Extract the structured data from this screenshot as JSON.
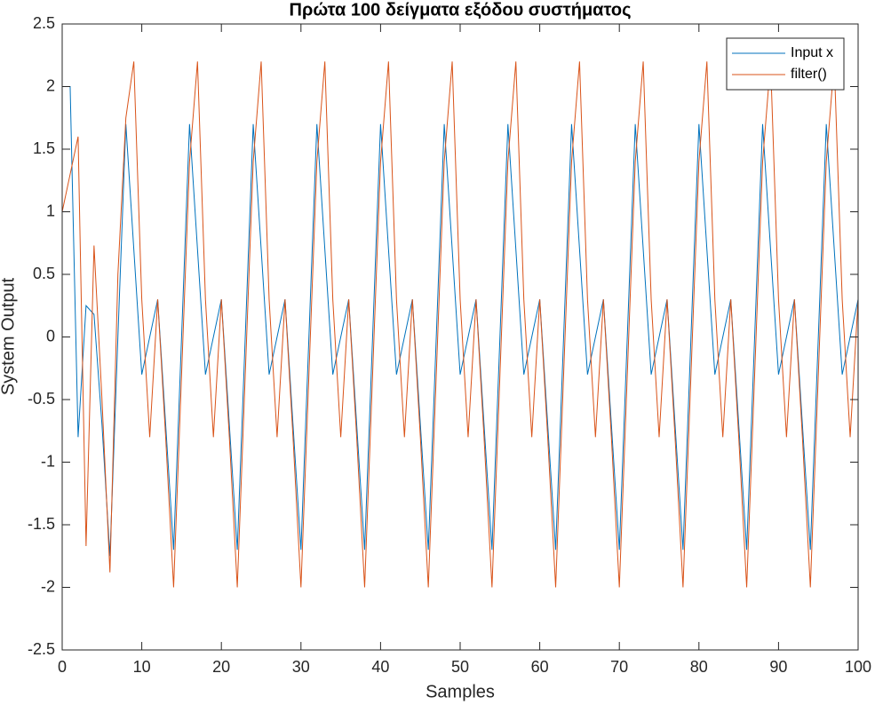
{
  "chart_data": {
    "type": "line",
    "title": "Πρώτα 100 δείγματα εξόδου συστήματος",
    "x_label": "Samples",
    "y_label": "System Output",
    "x": [
      0,
      1,
      2,
      3,
      4,
      5,
      6,
      7,
      8,
      9,
      10,
      11,
      12,
      13,
      14,
      15,
      16,
      17,
      18,
      19,
      20,
      21,
      22,
      23,
      24,
      25,
      26,
      27,
      28,
      29,
      30,
      31,
      32,
      33,
      34,
      35,
      36,
      37,
      38,
      39,
      40,
      41,
      42,
      43,
      44,
      45,
      46,
      47,
      48,
      49,
      50,
      51,
      52,
      53,
      54,
      55,
      56,
      57,
      58,
      59,
      60,
      61,
      62,
      63,
      64,
      65,
      66,
      67,
      68,
      69,
      70,
      71,
      72,
      73,
      74,
      75,
      76,
      77,
      78,
      79,
      80,
      81,
      82,
      83,
      84,
      85,
      86,
      87,
      88,
      89,
      90,
      91,
      92,
      93,
      94,
      95,
      96,
      97,
      98,
      99,
      100
    ],
    "series": [
      {
        "name": "Input x",
        "color": "#0072BD",
        "values": [
          2,
          2,
          -0.8,
          0.25,
          0.18,
          -0.7,
          -1.75,
          0,
          1.7,
          0.7,
          -0.3,
          0,
          0.3,
          -0.7,
          -1.7,
          0,
          1.7,
          0.7,
          -0.3,
          0,
          0.3,
          -0.7,
          -1.7,
          0,
          1.7,
          0.7,
          -0.3,
          0,
          0.3,
          -0.7,
          -1.7,
          0,
          1.7,
          0.7,
          -0.3,
          0,
          0.3,
          -0.7,
          -1.7,
          0,
          1.7,
          0.7,
          -0.3,
          0,
          0.3,
          -0.7,
          -1.7,
          0,
          1.7,
          0.7,
          -0.3,
          0,
          0.3,
          -0.7,
          -1.7,
          0,
          1.7,
          0.7,
          -0.3,
          0,
          0.3,
          -0.7,
          -1.7,
          0,
          1.7,
          0.7,
          -0.3,
          0,
          0.3,
          -0.7,
          -1.7,
          0,
          1.7,
          0.7,
          -0.3,
          0,
          0.3,
          -0.7,
          -1.7,
          0,
          1.7,
          0.7,
          -0.3,
          0,
          0.3,
          -0.7,
          -1.7,
          0,
          1.7,
          0.7,
          -0.3,
          0,
          0.3,
          -0.7,
          -1.7,
          0,
          1.7,
          0.7,
          -0.3,
          0,
          0.3
        ]
      },
      {
        "name": "filter()",
        "color": "#D95319",
        "values": [
          1,
          1.3,
          1.6,
          -1.67,
          0.73,
          -0.5,
          -1.88,
          0.5,
          1.75,
          2.2,
          0.3,
          -0.8,
          0.3,
          -0.8,
          -2,
          -0.3,
          1.4,
          2.2,
          0.3,
          -0.8,
          0.3,
          -0.8,
          -2,
          -0.3,
          1.4,
          2.2,
          0.3,
          -0.8,
          0.3,
          -0.8,
          -2,
          -0.3,
          1.4,
          2.2,
          0.3,
          -0.8,
          0.3,
          -0.8,
          -2,
          -0.3,
          1.4,
          2.2,
          0.3,
          -0.8,
          0.3,
          -0.8,
          -2,
          -0.3,
          1.4,
          2.2,
          0.3,
          -0.8,
          0.3,
          -0.8,
          -2,
          -0.3,
          1.4,
          2.2,
          0.3,
          -0.8,
          0.3,
          -0.8,
          -2,
          -0.3,
          1.4,
          2.2,
          0.3,
          -0.8,
          0.3,
          -0.8,
          -2,
          -0.3,
          1.4,
          2.2,
          0.3,
          -0.8,
          0.3,
          -0.8,
          -2,
          -0.3,
          1.4,
          2.2,
          0.3,
          -0.8,
          0.3,
          -0.8,
          -2,
          -0.3,
          1.4,
          2.2,
          0.3,
          -0.8,
          0.3,
          -0.8,
          -2,
          -0.3,
          1.4,
          2.2,
          0.3,
          -0.8,
          0.3
        ]
      }
    ],
    "xlim": [
      0,
      100
    ],
    "xticks": [
      0,
      10,
      20,
      30,
      40,
      50,
      60,
      70,
      80,
      90,
      100
    ],
    "ylim": [
      -2.5,
      2.5
    ],
    "yticks": [
      -2.5,
      -2,
      -1.5,
      -1,
      -0.5,
      0,
      0.5,
      1,
      1.5,
      2,
      2.5
    ],
    "grid": false,
    "legend": "northeast"
  }
}
